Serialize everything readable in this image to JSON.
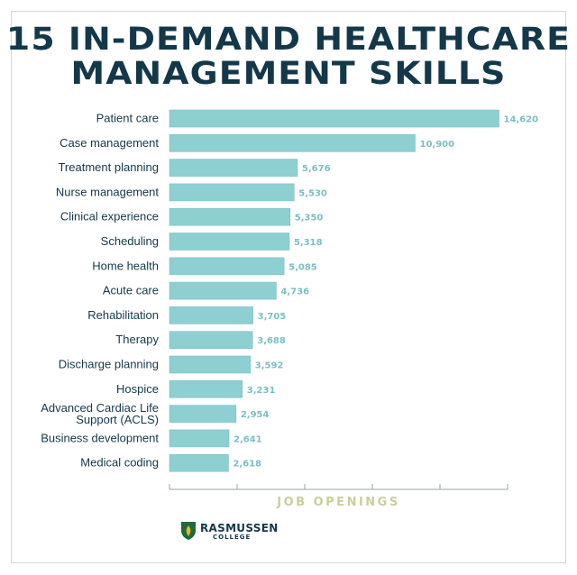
{
  "header": {
    "title_line1": "15 IN-DEMAND HEALTHCARE",
    "title_line2": "MANAGEMENT SKILLS"
  },
  "brand": {
    "name": "RASMUSSEN",
    "sub": "COLLEGE",
    "color_primary": "#14384a",
    "color_green": "#1e6b3a",
    "color_gold": "#e5b52c"
  },
  "colors": {
    "bar": "#8ecfd2",
    "bar_edge": "#7cc0c4",
    "value_label": "#7bbfc3",
    "axis": "#9aa3a7",
    "axis_title": "#c9cf9a",
    "category": "#14384a"
  },
  "chart_data": {
    "type": "bar",
    "orientation": "horizontal",
    "title": "15 IN-DEMAND HEALTHCARE MANAGEMENT SKILLS",
    "xlabel": "JOB OPENINGS",
    "ylabel": "",
    "xlim": [
      0,
      15000
    ],
    "x_ticks": [
      0,
      3000,
      6000,
      9000,
      12000,
      15000
    ],
    "show_tick_labels": false,
    "grid": false,
    "legend": "none",
    "categories": [
      "Patient care",
      "Case management",
      "Treatment planning",
      "Nurse management",
      "Clinical experience",
      "Scheduling",
      "Home health",
      "Acute care",
      "Rehabilitation",
      "Therapy",
      "Discharge planning",
      "Hospice",
      "Advanced Cardiac Life Support (ACLS)",
      "Business development",
      "Medical coding"
    ],
    "category_lines": [
      [
        "Patient care"
      ],
      [
        "Case management"
      ],
      [
        "Treatment planning"
      ],
      [
        "Nurse management"
      ],
      [
        "Clinical experience"
      ],
      [
        "Scheduling"
      ],
      [
        "Home health"
      ],
      [
        "Acute care"
      ],
      [
        "Rehabilitation"
      ],
      [
        "Therapy"
      ],
      [
        "Discharge planning"
      ],
      [
        "Hospice"
      ],
      [
        "Advanced Cardiac Life",
        "Support (ACLS)"
      ],
      [
        "Business development"
      ],
      [
        "Medical coding"
      ]
    ],
    "values": [
      14620,
      10900,
      5676,
      5530,
      5350,
      5318,
      5085,
      4736,
      3705,
      3688,
      3592,
      3231,
      2954,
      2641,
      2618
    ],
    "value_labels": [
      "14,620",
      "10,900",
      "5,676",
      "5,530",
      "5,350",
      "5,318",
      "5,085",
      "4,736",
      "3,705",
      "3,688",
      "3,592",
      "3,231",
      "2,954",
      "2,641",
      "2,618"
    ]
  }
}
